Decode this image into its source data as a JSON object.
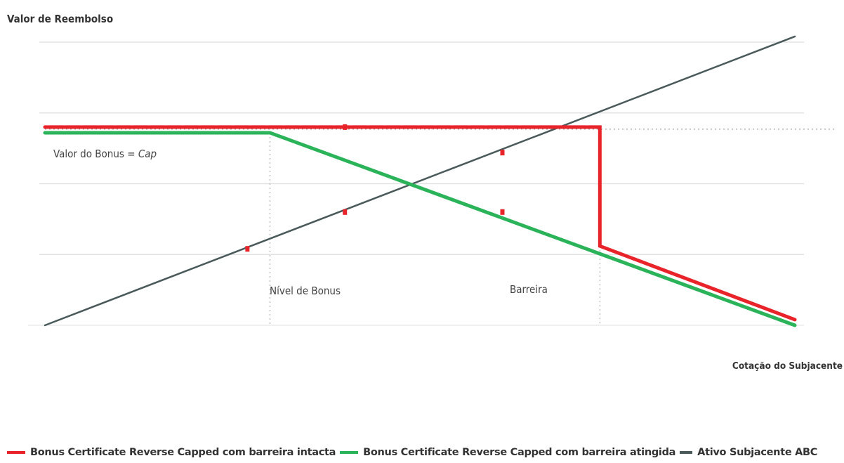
{
  "chart_data": {
    "type": "line",
    "ylabel": "Valor de Reembolso",
    "xlabel": "Cotação do Subjacente",
    "xlim": [
      0,
      10
    ],
    "ylim": [
      0,
      10
    ],
    "annotations": {
      "bonus_value": "Valor do Bonus = ",
      "bonus_value_cap": "Cap",
      "bonus_level": "Nível de Bonus",
      "barrier": "Barreira"
    },
    "reference_lines": {
      "cap_level": 7,
      "bonus_level_x": 3,
      "barrier_x": 7.4
    },
    "series": [
      {
        "name": "Bonus Certificate Reverse Capped com barreira intacta",
        "color": "#e8232a",
        "x": [
          0,
          7.4,
          7.4,
          10
        ],
        "y": [
          7,
          7,
          2.8,
          0.2
        ]
      },
      {
        "name": "Bonus Certificate Reverse Capped com barreira atingida",
        "color": "#2bb35a",
        "x": [
          0,
          3,
          10
        ],
        "y": [
          6.8,
          6.8,
          0
        ]
      },
      {
        "name": "Ativo Subjacente ABC",
        "color": "#4a5a5a",
        "x": [
          0,
          10
        ],
        "y": [
          0,
          10.2
        ]
      }
    ]
  }
}
